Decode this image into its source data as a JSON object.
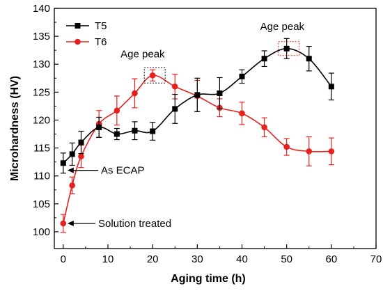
{
  "chart_data": {
    "type": "line",
    "xlabel": "Aging time (h)",
    "ylabel": "Microhardness (HV)",
    "xlim": [
      -2,
      70
    ],
    "ylim": [
      97,
      140
    ],
    "xticks": [
      0,
      10,
      20,
      30,
      40,
      50,
      60,
      70
    ],
    "yticks": [
      100,
      105,
      110,
      115,
      120,
      125,
      130,
      135,
      140
    ],
    "legend_position": "top-left",
    "series": [
      {
        "name": "T5",
        "color": "#000000",
        "marker": "square",
        "x": [
          0,
          2,
          4,
          8,
          12,
          16,
          20,
          25,
          30,
          35,
          40,
          45,
          50,
          55,
          60
        ],
        "y": [
          112.3,
          113.9,
          116.0,
          118.7,
          117.5,
          118.1,
          118.0,
          122.0,
          124.5,
          124.8,
          127.8,
          131.0,
          132.8,
          131.0,
          126.0
        ],
        "err": [
          1.8,
          2.0,
          2.0,
          1.8,
          1.0,
          1.6,
          1.6,
          2.6,
          3.0,
          2.8,
          1.2,
          1.4,
          1.8,
          2.2,
          2.4
        ]
      },
      {
        "name": "T6",
        "color": "#e8201d",
        "marker": "circle",
        "x": [
          0,
          2,
          4,
          8,
          12,
          16,
          20,
          25,
          30,
          35,
          40,
          45,
          50,
          55,
          60
        ],
        "y": [
          101.5,
          108.3,
          113.5,
          119.3,
          121.7,
          124.8,
          128.0,
          126.0,
          124.3,
          122.2,
          121.2,
          118.7,
          115.2,
          114.4,
          114.4
        ],
        "err": [
          1.6,
          1.5,
          2.0,
          2.4,
          2.6,
          2.6,
          1.0,
          2.2,
          2.8,
          1.6,
          2.0,
          1.7,
          1.5,
          2.6,
          2.4
        ]
      }
    ],
    "annotations": [
      {
        "text": "Age peak",
        "near_series": "T6",
        "near_x": 20
      },
      {
        "text": "Age peak",
        "near_series": "T5",
        "near_x": 50
      },
      {
        "text": "As ECAP",
        "arrow_to": {
          "series": "T5",
          "x": 0
        }
      },
      {
        "text": "Solution treated",
        "arrow_to": {
          "series": "T6",
          "x": 0
        }
      }
    ]
  }
}
